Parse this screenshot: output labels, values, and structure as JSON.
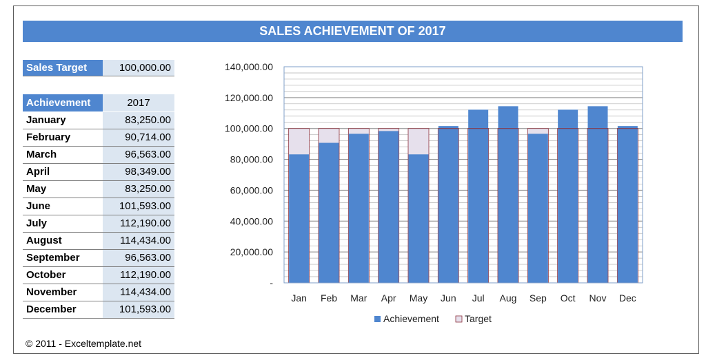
{
  "title": "SALES ACHIEVEMENT OF 2017",
  "sales_target": {
    "label": "Sales Target",
    "value": "100,000.00"
  },
  "achievement_table": {
    "header_label": "Achievement",
    "header_year": "2017",
    "rows": [
      {
        "month": "January",
        "value": "83,250.00"
      },
      {
        "month": "February",
        "value": "90,714.00"
      },
      {
        "month": "March",
        "value": "96,563.00"
      },
      {
        "month": "April",
        "value": "98,349.00"
      },
      {
        "month": "May",
        "value": "83,250.00"
      },
      {
        "month": "June",
        "value": "101,593.00"
      },
      {
        "month": "July",
        "value": "112,190.00"
      },
      {
        "month": "August",
        "value": "114,434.00"
      },
      {
        "month": "September",
        "value": "96,563.00"
      },
      {
        "month": "October",
        "value": "112,190.00"
      },
      {
        "month": "November",
        "value": "114,434.00"
      },
      {
        "month": "December",
        "value": "101,593.00"
      }
    ]
  },
  "footer": "© 2011 - Exceltemplate.net",
  "colors": {
    "accent": "#4f86cf",
    "target_fill": "#e6e0ec",
    "target_border": "#8b2e3a",
    "cell_fill": "#dce6f1"
  },
  "chart_data": {
    "type": "bar",
    "categories": [
      "Jan",
      "Feb",
      "Mar",
      "Apr",
      "May",
      "Jun",
      "Jul",
      "Aug",
      "Sep",
      "Oct",
      "Nov",
      "Dec"
    ],
    "series": [
      {
        "name": "Achievement",
        "values": [
          83250,
          90714,
          96563,
          98349,
          83250,
          101593,
          112190,
          114434,
          96563,
          112190,
          114434,
          101593
        ]
      },
      {
        "name": "Target",
        "values": [
          100000,
          100000,
          100000,
          100000,
          100000,
          100000,
          100000,
          100000,
          100000,
          100000,
          100000,
          100000
        ]
      }
    ],
    "ylim": [
      0,
      140000
    ],
    "yticks": [
      {
        "value": 140000,
        "label": "140,000.00"
      },
      {
        "value": 120000,
        "label": "120,000.00"
      },
      {
        "value": 100000,
        "label": "100,000.00"
      },
      {
        "value": 80000,
        "label": "80,000.00"
      },
      {
        "value": 60000,
        "label": "60,000.00"
      },
      {
        "value": 40000,
        "label": "40,000.00"
      },
      {
        "value": 20000,
        "label": "20,000.00"
      },
      {
        "value": 0,
        "label": "-"
      }
    ],
    "grid": true,
    "legend": "bottom"
  }
}
